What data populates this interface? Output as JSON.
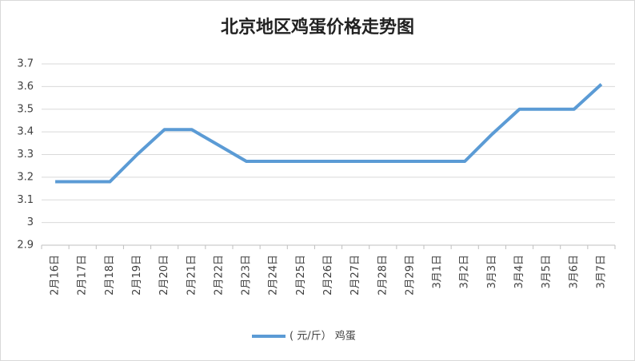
{
  "chart_data": {
    "type": "line",
    "title": "北京地区鸡蛋价格走势图",
    "categories": [
      "2月16日",
      "2月17日",
      "2月18日",
      "2月19日",
      "2月20日",
      "2月21日",
      "2月22日",
      "2月23日",
      "2月24日",
      "2月25日",
      "2月26日",
      "2月27日",
      "2月28日",
      "2月29日",
      "3月1日",
      "3月2日",
      "3月3日",
      "3月4日",
      "3月5日",
      "3月6日",
      "3月7日"
    ],
    "series": [
      {
        "name": "( 元/斤） 鸡蛋",
        "color": "#5b9bd5",
        "values": [
          3.18,
          3.18,
          3.18,
          3.3,
          3.41,
          3.41,
          3.34,
          3.27,
          3.27,
          3.27,
          3.27,
          3.27,
          3.27,
          3.27,
          3.27,
          3.27,
          3.39,
          3.5,
          3.5,
          3.5,
          3.61
        ]
      }
    ],
    "ylim": [
      2.9,
      3.7
    ],
    "yticks": [
      2.9,
      3,
      3.1,
      3.2,
      3.3,
      3.4,
      3.5,
      3.6,
      3.7
    ],
    "grid": true,
    "legend": "bottom"
  }
}
